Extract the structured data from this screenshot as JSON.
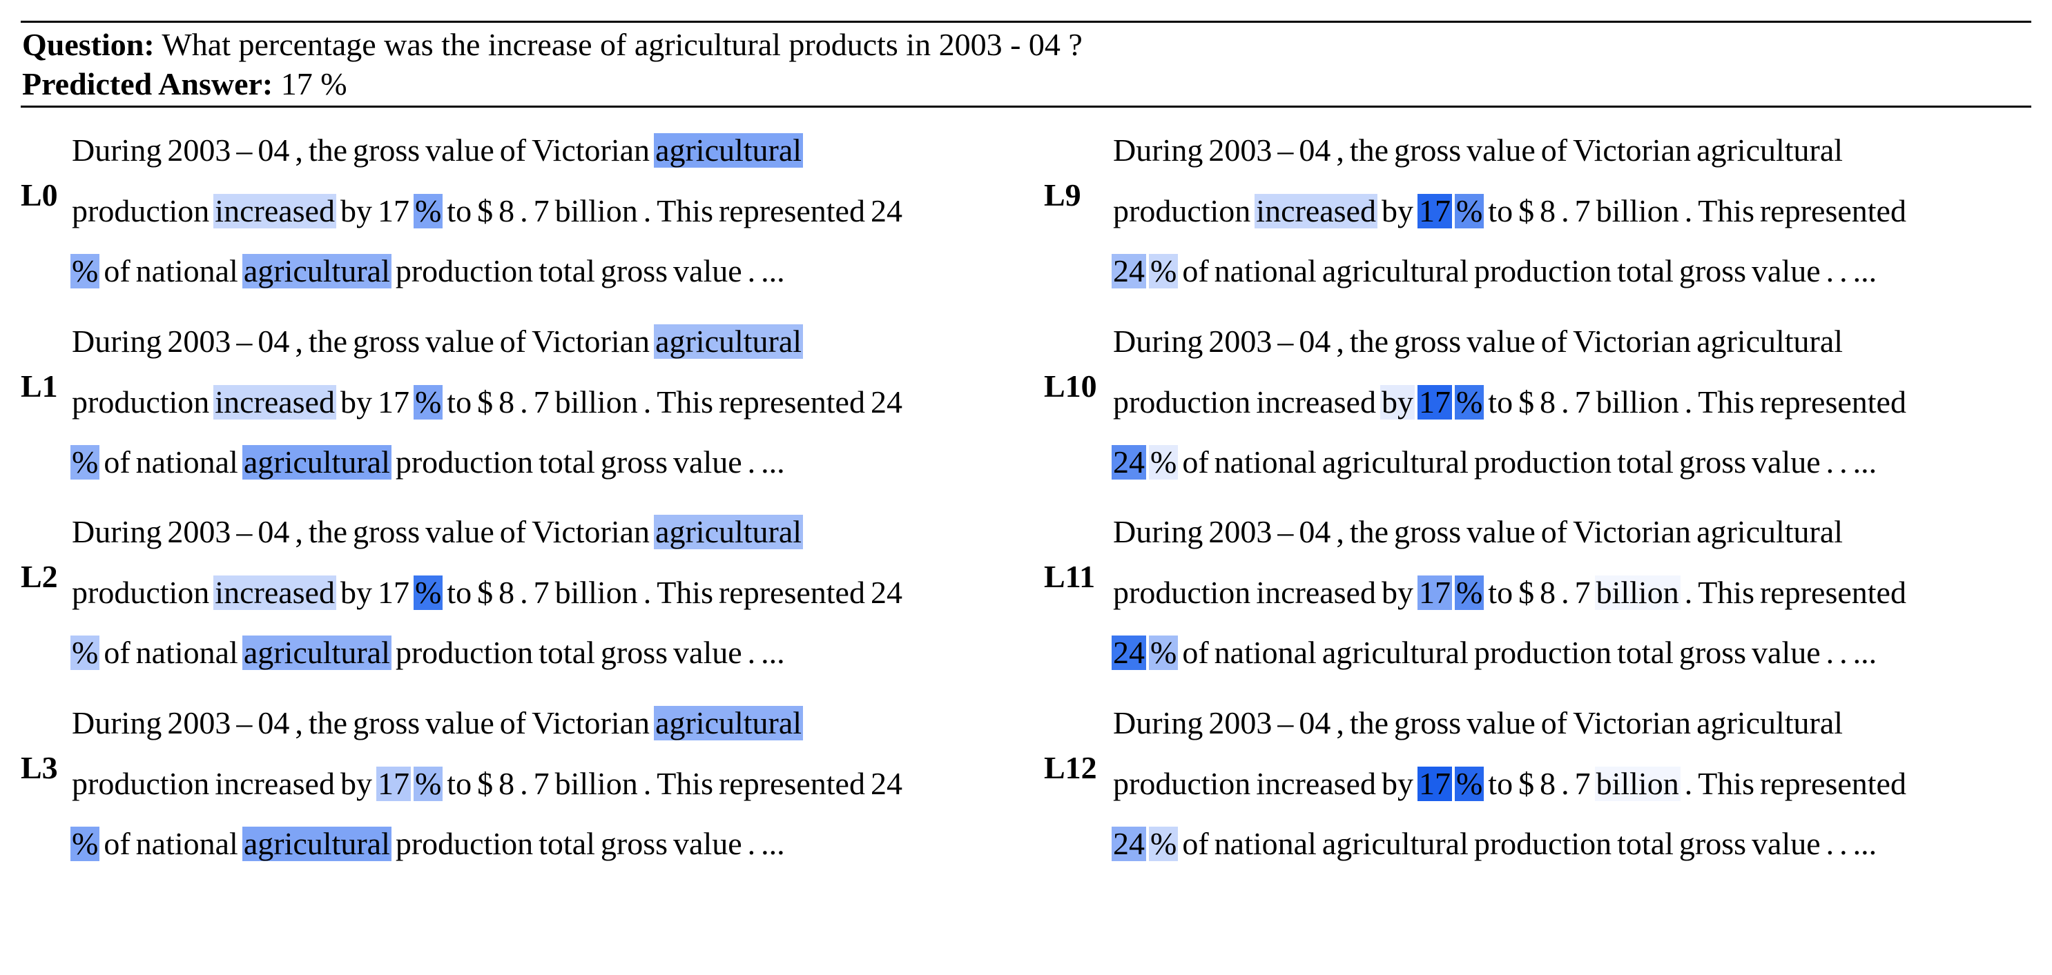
{
  "header": {
    "question_label": "Question:",
    "question_text": "What percentage was the increase of agricultural products in 2003 - 04 ?",
    "answer_label": "Predicted Answer:",
    "answer_text": "17 %"
  },
  "heat_colors": {
    "0": "transparent",
    "1": "#f3f6fe",
    "2": "#e4ebfd",
    "3": "#c7d7fb",
    "4": "#b3c9fa",
    "5": "#a2bdf8",
    "6": "#8eaff7",
    "7": "#7ea4f6",
    "8": "#5b8cf2",
    "9": "#3a77f0",
    "10": "#2667ee",
    "11": "#1b5fec"
  },
  "panels": [
    {
      "label": "L0",
      "lines": [
        [
          [
            "During",
            0
          ],
          [
            "2003",
            0
          ],
          [
            "–",
            0
          ],
          [
            "04",
            0
          ],
          [
            ",",
            0
          ],
          [
            "the",
            0
          ],
          [
            "gross",
            0
          ],
          [
            "value",
            0
          ],
          [
            "of",
            0
          ],
          [
            "Victorian",
            0
          ],
          [
            "agricultural",
            7
          ]
        ],
        [
          [
            "production",
            0
          ],
          [
            "increased",
            3
          ],
          [
            "by",
            0
          ],
          [
            "17",
            0
          ],
          [
            "%",
            7
          ],
          [
            "to",
            0
          ],
          [
            "$",
            0
          ],
          [
            "8",
            0
          ],
          [
            ".",
            0
          ],
          [
            "7",
            0
          ],
          [
            "billion",
            0
          ],
          [
            ".",
            0
          ],
          [
            "This",
            0
          ],
          [
            "represented",
            0
          ],
          [
            "24",
            0
          ]
        ],
        [
          [
            "%",
            6
          ],
          [
            "of",
            0
          ],
          [
            "national",
            0
          ],
          [
            "agricultural",
            6
          ],
          [
            "production",
            0
          ],
          [
            "total",
            0
          ],
          [
            "gross",
            0
          ],
          [
            "value",
            0
          ],
          [
            ".",
            0
          ],
          [
            "...",
            0
          ]
        ]
      ]
    },
    {
      "label": "L1",
      "lines": [
        [
          [
            "During",
            0
          ],
          [
            "2003",
            0
          ],
          [
            "–",
            0
          ],
          [
            "04",
            0
          ],
          [
            ",",
            0
          ],
          [
            "the",
            0
          ],
          [
            "gross",
            0
          ],
          [
            "value",
            0
          ],
          [
            "of",
            0
          ],
          [
            "Victorian",
            0
          ],
          [
            "agricultural",
            5
          ]
        ],
        [
          [
            "production",
            0
          ],
          [
            "increased",
            3
          ],
          [
            "by",
            0
          ],
          [
            "17",
            0
          ],
          [
            "%",
            7
          ],
          [
            "to",
            0
          ],
          [
            "$",
            0
          ],
          [
            "8",
            0
          ],
          [
            ".",
            0
          ],
          [
            "7",
            0
          ],
          [
            "billion",
            0
          ],
          [
            ".",
            0
          ],
          [
            "This",
            0
          ],
          [
            "represented",
            0
          ],
          [
            "24",
            0
          ]
        ],
        [
          [
            "%",
            6
          ],
          [
            "of",
            0
          ],
          [
            "national",
            0
          ],
          [
            "agricultural",
            7
          ],
          [
            "production",
            0
          ],
          [
            "total",
            0
          ],
          [
            "gross",
            0
          ],
          [
            "value",
            0
          ],
          [
            ".",
            0
          ],
          [
            "...",
            0
          ]
        ]
      ]
    },
    {
      "label": "L2",
      "lines": [
        [
          [
            "During",
            0
          ],
          [
            "2003",
            0
          ],
          [
            "–",
            0
          ],
          [
            "04",
            0
          ],
          [
            ",",
            0
          ],
          [
            "the",
            0
          ],
          [
            "gross",
            0
          ],
          [
            "value",
            0
          ],
          [
            "of",
            0
          ],
          [
            "Victorian",
            0
          ],
          [
            "agricultural",
            5
          ]
        ],
        [
          [
            "production",
            0
          ],
          [
            "increased",
            3
          ],
          [
            "by",
            0
          ],
          [
            "17",
            0
          ],
          [
            "%",
            9
          ],
          [
            "to",
            0
          ],
          [
            "$",
            0
          ],
          [
            "8",
            0
          ],
          [
            ".",
            0
          ],
          [
            "7",
            0
          ],
          [
            "billion",
            0
          ],
          [
            ".",
            0
          ],
          [
            "This",
            0
          ],
          [
            "represented",
            0
          ],
          [
            "24",
            0
          ]
        ],
        [
          [
            "%",
            4
          ],
          [
            "of",
            0
          ],
          [
            "national",
            0
          ],
          [
            "agricultural",
            6
          ],
          [
            "production",
            0
          ],
          [
            "total",
            0
          ],
          [
            "gross",
            0
          ],
          [
            "value",
            0
          ],
          [
            ".",
            0
          ],
          [
            "...",
            0
          ]
        ]
      ]
    },
    {
      "label": "L3",
      "lines": [
        [
          [
            "During",
            0
          ],
          [
            "2003",
            0
          ],
          [
            "–",
            0
          ],
          [
            "04",
            0
          ],
          [
            ",",
            0
          ],
          [
            "the",
            0
          ],
          [
            "gross",
            0
          ],
          [
            "value",
            0
          ],
          [
            "of",
            0
          ],
          [
            "Victorian",
            0
          ],
          [
            "agricultural",
            6
          ]
        ],
        [
          [
            "production",
            0
          ],
          [
            "increased",
            0
          ],
          [
            "by",
            0
          ],
          [
            "17",
            4
          ],
          [
            "%",
            5
          ],
          [
            "to",
            0
          ],
          [
            "$",
            0
          ],
          [
            "8",
            0
          ],
          [
            ".",
            0
          ],
          [
            "7",
            0
          ],
          [
            "billion",
            0
          ],
          [
            ".",
            0
          ],
          [
            "This",
            0
          ],
          [
            "represented",
            0
          ],
          [
            "24",
            0
          ]
        ],
        [
          [
            "%",
            7
          ],
          [
            "of",
            0
          ],
          [
            "national",
            0
          ],
          [
            "agricultural",
            7
          ],
          [
            "production",
            0
          ],
          [
            "total",
            0
          ],
          [
            "gross",
            0
          ],
          [
            "value",
            0
          ],
          [
            ".",
            0
          ],
          [
            "...",
            0
          ]
        ]
      ]
    },
    {
      "label": "L9",
      "lines": [
        [
          [
            "During",
            0
          ],
          [
            "2003",
            0
          ],
          [
            "–",
            0
          ],
          [
            "04",
            0
          ],
          [
            ",",
            0
          ],
          [
            "the",
            0
          ],
          [
            "gross",
            0
          ],
          [
            "value",
            0
          ],
          [
            "of",
            0
          ],
          [
            "Victorian",
            0
          ],
          [
            "agricultural",
            0
          ]
        ],
        [
          [
            "production",
            0
          ],
          [
            "increased",
            3
          ],
          [
            "by",
            0
          ],
          [
            "17",
            10
          ],
          [
            "%",
            8
          ],
          [
            "to",
            0
          ],
          [
            "$",
            0
          ],
          [
            "8",
            0
          ],
          [
            ".",
            0
          ],
          [
            "7",
            0
          ],
          [
            "billion",
            0
          ],
          [
            ".",
            0
          ],
          [
            "This",
            0
          ],
          [
            "represented",
            0
          ]
        ],
        [
          [
            "24",
            5
          ],
          [
            "%",
            3
          ],
          [
            "of",
            0
          ],
          [
            "national",
            0
          ],
          [
            "agricultural",
            0
          ],
          [
            "production",
            0
          ],
          [
            "total",
            0
          ],
          [
            "gross",
            0
          ],
          [
            "value",
            0
          ],
          [
            ".",
            0
          ],
          [
            ".",
            0
          ],
          [
            "...",
            0
          ]
        ]
      ]
    },
    {
      "label": "L10",
      "lines": [
        [
          [
            "During",
            0
          ],
          [
            "2003",
            0
          ],
          [
            "–",
            0
          ],
          [
            "04",
            0
          ],
          [
            ",",
            0
          ],
          [
            "the",
            0
          ],
          [
            "gross",
            0
          ],
          [
            "value",
            0
          ],
          [
            "of",
            0
          ],
          [
            "Victorian",
            0
          ],
          [
            "agricultural",
            0
          ]
        ],
        [
          [
            "production",
            0
          ],
          [
            "increased",
            0
          ],
          [
            "by",
            2
          ],
          [
            "17",
            10
          ],
          [
            "%",
            9
          ],
          [
            "to",
            0
          ],
          [
            "$",
            0
          ],
          [
            "8",
            0
          ],
          [
            ".",
            0
          ],
          [
            "7",
            0
          ],
          [
            "billion",
            0
          ],
          [
            ".",
            0
          ],
          [
            "This",
            0
          ],
          [
            "represented",
            0
          ]
        ],
        [
          [
            "24",
            8
          ],
          [
            "%",
            2
          ],
          [
            "of",
            0
          ],
          [
            "national",
            0
          ],
          [
            "agricultural",
            0
          ],
          [
            "production",
            0
          ],
          [
            "total",
            0
          ],
          [
            "gross",
            0
          ],
          [
            "value",
            0
          ],
          [
            ".",
            0
          ],
          [
            ".",
            0
          ],
          [
            "...",
            0
          ]
        ]
      ]
    },
    {
      "label": "L11",
      "lines": [
        [
          [
            "During",
            0
          ],
          [
            "2003",
            0
          ],
          [
            "–",
            0
          ],
          [
            "04",
            0
          ],
          [
            ",",
            0
          ],
          [
            "the",
            0
          ],
          [
            "gross",
            0
          ],
          [
            "value",
            0
          ],
          [
            "of",
            0
          ],
          [
            "Victorian",
            0
          ],
          [
            "agricultural",
            0
          ]
        ],
        [
          [
            "production",
            0
          ],
          [
            "increased",
            0
          ],
          [
            "by",
            0
          ],
          [
            "17",
            7
          ],
          [
            "%",
            8
          ],
          [
            "to",
            0
          ],
          [
            "$",
            0
          ],
          [
            "8",
            0
          ],
          [
            ".",
            0
          ],
          [
            "7",
            0
          ],
          [
            "billion",
            1
          ],
          [
            ".",
            0
          ],
          [
            "This",
            0
          ],
          [
            "represented",
            0
          ]
        ],
        [
          [
            "24",
            9
          ],
          [
            "%",
            5
          ],
          [
            "of",
            0
          ],
          [
            "national",
            0
          ],
          [
            "agricultural",
            0
          ],
          [
            "production",
            0
          ],
          [
            "total",
            0
          ],
          [
            "gross",
            0
          ],
          [
            "value",
            0
          ],
          [
            ".",
            0
          ],
          [
            ".",
            0
          ],
          [
            "...",
            0
          ]
        ]
      ]
    },
    {
      "label": "L12",
      "lines": [
        [
          [
            "During",
            0
          ],
          [
            "2003",
            0
          ],
          [
            "–",
            0
          ],
          [
            "04",
            0
          ],
          [
            ",",
            0
          ],
          [
            "the",
            0
          ],
          [
            "gross",
            0
          ],
          [
            "value",
            0
          ],
          [
            "of",
            0
          ],
          [
            "Victorian",
            0
          ],
          [
            "agricultural",
            0
          ]
        ],
        [
          [
            "production",
            0
          ],
          [
            "increased",
            0
          ],
          [
            "by",
            0
          ],
          [
            "17",
            11
          ],
          [
            "%",
            10
          ],
          [
            "to",
            0
          ],
          [
            "$",
            0
          ],
          [
            "8",
            0
          ],
          [
            ".",
            0
          ],
          [
            "7",
            0
          ],
          [
            "billion",
            1
          ],
          [
            ".",
            0
          ],
          [
            "This",
            0
          ],
          [
            "represented",
            0
          ]
        ],
        [
          [
            "24",
            6
          ],
          [
            "%",
            3
          ],
          [
            "of",
            0
          ],
          [
            "national",
            0
          ],
          [
            "agricultural",
            0
          ],
          [
            "production",
            0
          ],
          [
            "total",
            0
          ],
          [
            "gross",
            0
          ],
          [
            "value",
            0
          ],
          [
            ".",
            0
          ],
          [
            ".",
            0
          ],
          [
            "...",
            0
          ]
        ]
      ]
    }
  ]
}
